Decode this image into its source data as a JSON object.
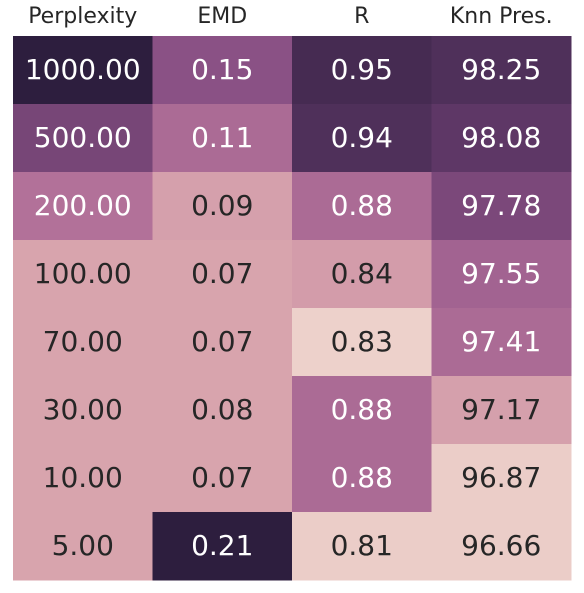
{
  "chart_data": {
    "type": "heatmap",
    "columns": [
      "Perplexity",
      "EMD",
      "R",
      "Knn Pres."
    ],
    "rows": [
      {
        "cells": [
          {
            "value": "1000.00",
            "shade": 1.0,
            "dark": true
          },
          {
            "value": "0.15",
            "shade": 0.62,
            "dark": true
          },
          {
            "value": "0.95",
            "shade": 0.9,
            "dark": true
          },
          {
            "value": "98.25",
            "shade": 0.86,
            "dark": true
          }
        ]
      },
      {
        "cells": [
          {
            "value": "500.00",
            "shade": 0.7,
            "dark": true
          },
          {
            "value": "0.11",
            "shade": 0.48,
            "dark": true
          },
          {
            "value": "0.94",
            "shade": 0.86,
            "dark": true
          },
          {
            "value": "98.08",
            "shade": 0.8,
            "dark": true
          }
        ]
      },
      {
        "cells": [
          {
            "value": "200.00",
            "shade": 0.45,
            "dark": true
          },
          {
            "value": "0.09",
            "shade": 0.22,
            "dark": false
          },
          {
            "value": "0.88",
            "shade": 0.48,
            "dark": true
          },
          {
            "value": "97.78",
            "shade": 0.68,
            "dark": true
          }
        ]
      },
      {
        "cells": [
          {
            "value": "100.00",
            "shade": 0.2,
            "dark": false
          },
          {
            "value": "0.07",
            "shade": 0.2,
            "dark": false
          },
          {
            "value": "0.84",
            "shade": 0.24,
            "dark": false
          },
          {
            "value": "97.55",
            "shade": 0.52,
            "dark": true
          }
        ]
      },
      {
        "cells": [
          {
            "value": "70.00",
            "shade": 0.2,
            "dark": false
          },
          {
            "value": "0.07",
            "shade": 0.2,
            "dark": false
          },
          {
            "value": "0.83",
            "shade": 0.0,
            "dark": false
          },
          {
            "value": "97.41",
            "shade": 0.48,
            "dark": true
          }
        ]
      },
      {
        "cells": [
          {
            "value": "30.00",
            "shade": 0.2,
            "dark": false
          },
          {
            "value": "0.08",
            "shade": 0.2,
            "dark": false
          },
          {
            "value": "0.88",
            "shade": 0.48,
            "dark": true
          },
          {
            "value": "97.17",
            "shade": 0.22,
            "dark": false
          }
        ]
      },
      {
        "cells": [
          {
            "value": "10.00",
            "shade": 0.2,
            "dark": false
          },
          {
            "value": "0.07",
            "shade": 0.2,
            "dark": false
          },
          {
            "value": "0.88",
            "shade": 0.48,
            "dark": true
          },
          {
            "value": "96.87",
            "shade": 0.02,
            "dark": false
          }
        ]
      },
      {
        "cells": [
          {
            "value": "5.00",
            "shade": 0.2,
            "dark": false
          },
          {
            "value": "0.21",
            "shade": 1.0,
            "dark": true
          },
          {
            "value": "0.81",
            "shade": 0.02,
            "dark": false
          },
          {
            "value": "96.66",
            "shade": 0.02,
            "dark": false
          }
        ]
      }
    ],
    "palette": [
      "#edd1cb",
      "#d8a4ad",
      "#be7a9e",
      "#8f5488",
      "#5e3766",
      "#2d1e3e"
    ],
    "text_colors": {
      "dark": "#ffffff",
      "light": "#262626"
    }
  }
}
